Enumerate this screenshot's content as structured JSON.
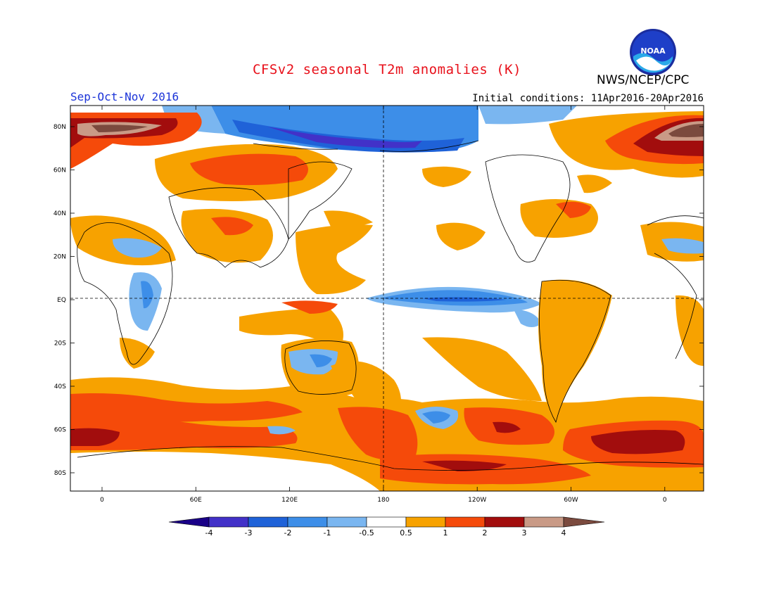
{
  "title": "CFSv2 seasonal T2m anomalies (K)",
  "season": "Sep-Oct-Nov 2016",
  "initial_conditions": "Initial conditions: 11Apr2016-20Apr2016",
  "agency": "NWS/NCEP/CPC",
  "logo_text": "NOAA",
  "lat_labels": [
    "80N",
    "60N",
    "40N",
    "20N",
    "EQ",
    "20S",
    "40S",
    "60S",
    "80S"
  ],
  "lon_labels": [
    "0",
    "60E",
    "120E",
    "180",
    "120W",
    "60W",
    "0"
  ],
  "colorbar": {
    "ticks": [
      "-4",
      "-3",
      "-2",
      "-1",
      "-0.5",
      "0.5",
      "1",
      "2",
      "3",
      "4"
    ],
    "colors": [
      "#1a0088",
      "#4231c8",
      "#1f62d8",
      "#3d8ee8",
      "#7ab6f0",
      "#ffffff",
      "#f7a200",
      "#f54a0a",
      "#a20d0d",
      "#c99a86",
      "#7b4a3e"
    ]
  }
}
